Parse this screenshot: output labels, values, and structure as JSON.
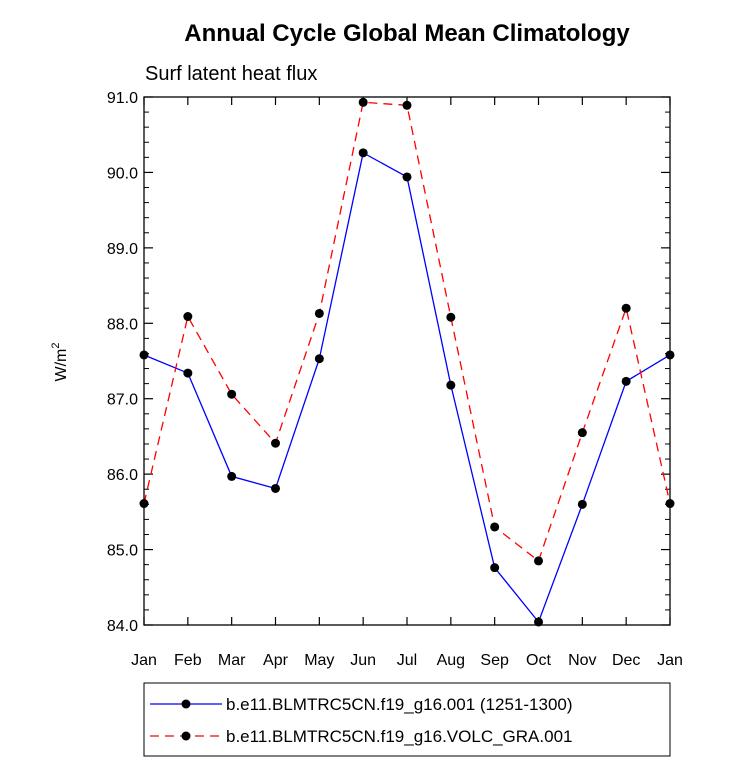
{
  "chart_data": {
    "type": "line",
    "title": "Annual Cycle Global Mean Climatology",
    "subtitle": "Surf latent heat flux",
    "xlabel": "",
    "ylabel": "W/m",
    "ylabel_superscript": "2",
    "categories": [
      "Jan",
      "Feb",
      "Mar",
      "Apr",
      "May",
      "Jun",
      "Jul",
      "Aug",
      "Sep",
      "Oct",
      "Nov",
      "Dec",
      "Jan"
    ],
    "ylim": [
      84.0,
      91.0
    ],
    "yticks": [
      "84.0",
      "85.0",
      "86.0",
      "87.0",
      "88.0",
      "89.0",
      "90.0",
      "91.0"
    ],
    "grid": false,
    "legend_position": "bottom",
    "series": [
      {
        "name": "b.e11.BLMTRC5CN.f19_g16.001 (1251-1300)",
        "color": "#0000ff",
        "dash": "solid",
        "values": [
          87.58,
          87.34,
          85.97,
          85.81,
          87.53,
          90.26,
          89.94,
          87.18,
          84.76,
          84.04,
          85.6,
          87.23,
          87.58
        ]
      },
      {
        "name": "b.e11.BLMTRC5CN.f19_g16.VOLC_GRA.001",
        "color": "#ff0000",
        "dash": "dashed",
        "values": [
          85.61,
          88.09,
          87.06,
          86.41,
          88.13,
          90.93,
          90.89,
          88.08,
          85.3,
          84.85,
          86.55,
          88.2,
          85.61
        ]
      }
    ]
  }
}
